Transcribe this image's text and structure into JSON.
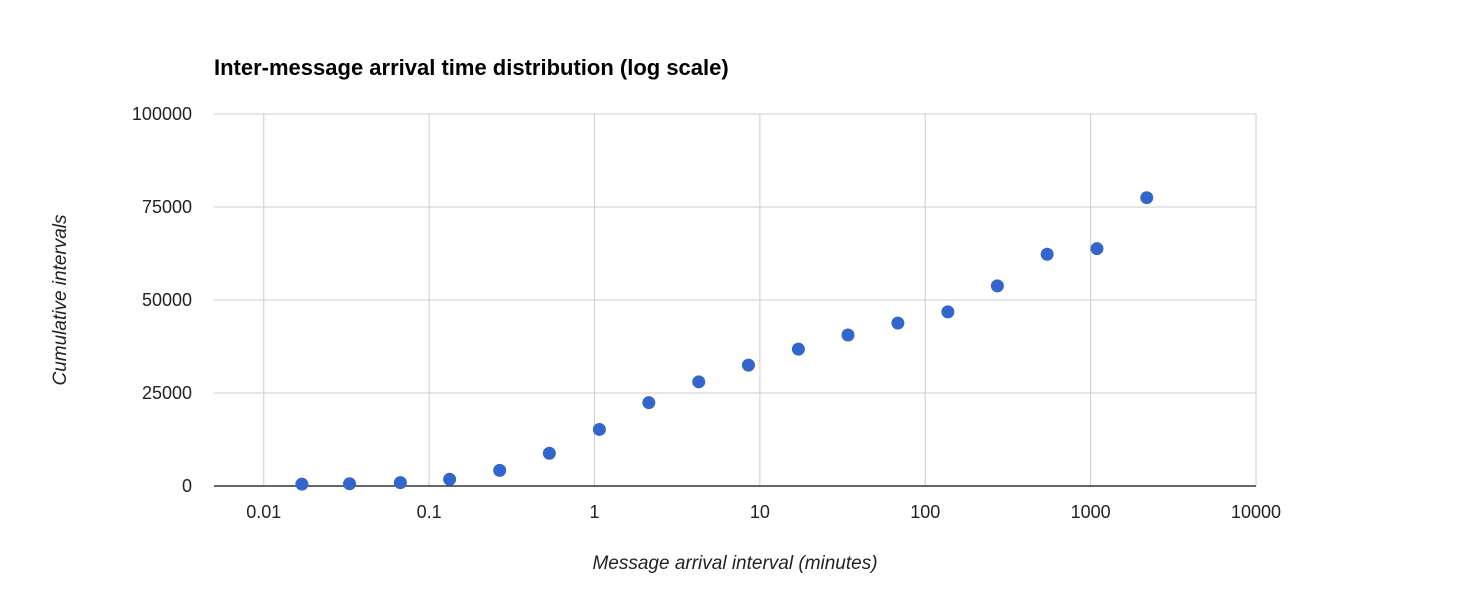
{
  "chart_data": {
    "type": "scatter",
    "title": "Inter-message arrival time distribution (log scale)",
    "xlabel": "Message arrival interval (minutes)",
    "ylabel": "Cumulative intervals",
    "x_scale": "log",
    "xlim": [
      0.005,
      10000
    ],
    "ylim": [
      0,
      100000
    ],
    "x_ticks": [
      "0.01",
      "0.1",
      "1",
      "10",
      "100",
      "1000",
      "10000"
    ],
    "y_ticks": [
      "0",
      "25000",
      "50000",
      "75000",
      "100000"
    ],
    "grid": true,
    "series_color": "#3366cc",
    "points": [
      {
        "x": 0.017,
        "y": 500
      },
      {
        "x": 0.033,
        "y": 600
      },
      {
        "x": 0.067,
        "y": 900
      },
      {
        "x": 0.133,
        "y": 1800
      },
      {
        "x": 0.267,
        "y": 4200
      },
      {
        "x": 0.533,
        "y": 8800
      },
      {
        "x": 1.07,
        "y": 15200
      },
      {
        "x": 2.13,
        "y": 22400
      },
      {
        "x": 4.27,
        "y": 28000
      },
      {
        "x": 8.53,
        "y": 32500
      },
      {
        "x": 17.1,
        "y": 36800
      },
      {
        "x": 34.1,
        "y": 40600
      },
      {
        "x": 68.3,
        "y": 43800
      },
      {
        "x": 137,
        "y": 46800
      },
      {
        "x": 273,
        "y": 53800
      },
      {
        "x": 546,
        "y": 62300
      },
      {
        "x": 1092,
        "y": 63800
      },
      {
        "x": 2185,
        "y": 77500
      }
    ]
  }
}
